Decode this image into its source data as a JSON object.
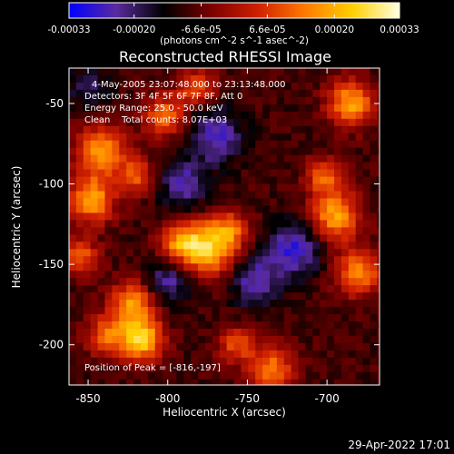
{
  "colorbar": {
    "tick_labels": [
      "-0.00033",
      "-0.00020",
      "-6.6e-05",
      "6.6e-05",
      "0.00020",
      "0.00033"
    ],
    "tick_values": [
      -0.00033,
      -0.0002,
      -6.6e-05,
      6.6e-05,
      0.0002,
      0.00033
    ],
    "range": [
      -0.00033,
      0.00033
    ],
    "unit_label": "(photons cm^-2 s^-1 asec^-2)",
    "colors": [
      "#0000ff",
      "#5a2aa0",
      "#000000",
      "#7a0000",
      "#d02000",
      "#ff7a00",
      "#ffd000",
      "#ffffe0"
    ]
  },
  "chart_data": {
    "type": "heatmap",
    "title": "Reconstructed RHESSI Image",
    "xlabel": "Heliocentric X (arcsec)",
    "ylabel": "Heliocentric Y (arcsec)",
    "xlim": [
      -862,
      -667
    ],
    "ylim": [
      -225,
      -28
    ],
    "x_ticks": [
      -850,
      -800,
      -750,
      -700
    ],
    "x_tick_labels": [
      "-850",
      "-800",
      "-750",
      "-700"
    ],
    "y_ticks": [
      -50,
      -100,
      -150,
      -200
    ],
    "y_tick_labels": [
      "-50",
      "-100",
      "-150",
      "-200"
    ],
    "grid": false,
    "sources": [
      {
        "x": -816,
        "y": -197,
        "amplitude": 1.0,
        "sigma": 9
      },
      {
        "x": -822,
        "y": -175,
        "amplitude": 0.8,
        "sigma": 10
      },
      {
        "x": -838,
        "y": -195,
        "amplitude": 0.6,
        "sigma": 9
      },
      {
        "x": -774,
        "y": -140,
        "amplitude": 0.95,
        "sigma": 12
      },
      {
        "x": -792,
        "y": -137,
        "amplitude": 0.7,
        "sigma": 9
      },
      {
        "x": -760,
        "y": -128,
        "amplitude": 0.5,
        "sigma": 8
      },
      {
        "x": -848,
        "y": -110,
        "amplitude": 0.85,
        "sigma": 10
      },
      {
        "x": -842,
        "y": -80,
        "amplitude": 0.8,
        "sigma": 11
      },
      {
        "x": -820,
        "y": -95,
        "amplitude": 0.55,
        "sigma": 8
      },
      {
        "x": -855,
        "y": -145,
        "amplitude": 0.6,
        "sigma": 8
      },
      {
        "x": -695,
        "y": -120,
        "amplitude": 0.85,
        "sigma": 11
      },
      {
        "x": -680,
        "y": -155,
        "amplitude": 0.75,
        "sigma": 10
      },
      {
        "x": -685,
        "y": -50,
        "amplitude": 0.85,
        "sigma": 10
      },
      {
        "x": -702,
        "y": -95,
        "amplitude": 0.6,
        "sigma": 8
      },
      {
        "x": -735,
        "y": -215,
        "amplitude": 0.7,
        "sigma": 10
      },
      {
        "x": -757,
        "y": -200,
        "amplitude": 0.55,
        "sigma": 8
      },
      {
        "x": -802,
        "y": -58,
        "amplitude": 0.65,
        "sigma": 9
      },
      {
        "x": -782,
        "y": -40,
        "amplitude": 0.6,
        "sigma": 8
      },
      {
        "x": -770,
        "y": -70,
        "amplitude": -0.5,
        "sigma": 12
      },
      {
        "x": -745,
        "y": -160,
        "amplitude": -0.5,
        "sigma": 11
      },
      {
        "x": -800,
        "y": -160,
        "amplitude": -0.45,
        "sigma": 10
      },
      {
        "x": -850,
        "y": -40,
        "amplitude": -0.3,
        "sigma": 9
      },
      {
        "x": -720,
        "y": -140,
        "amplitude": -0.55,
        "sigma": 12
      },
      {
        "x": -790,
        "y": -100,
        "amplitude": -0.45,
        "sigma": 11
      }
    ]
  },
  "annotations": {
    "time_range": "4-May-2005 23:07:48.000 to 23:13:48.000",
    "detectors": "Detectors: 3F 4F 5F 6F 7F 8F, Att 0",
    "energy_range": "Energy Range: 25.0 - 50.0 keV",
    "method_counts": "Clean    Total counts: 8.07E+03",
    "peak_position": "Position of Peak = [-816,-197]"
  },
  "timestamp": "29-Apr-2022 17:01"
}
